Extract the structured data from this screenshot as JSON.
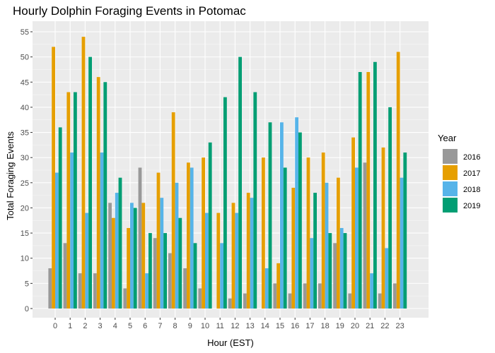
{
  "chart_data": {
    "type": "bar",
    "title": "Hourly Dolphin Foraging Events in Potomac",
    "xlabel": "Hour (EST)",
    "ylabel": "Total Foraging Events",
    "ylim": [
      0,
      55
    ],
    "yticks": [
      0,
      5,
      10,
      15,
      20,
      25,
      30,
      35,
      40,
      45,
      50,
      55
    ],
    "grid": true,
    "legend_title": "Year",
    "legend_position": "right",
    "categories": [
      "0",
      "1",
      "2",
      "3",
      "4",
      "5",
      "6",
      "7",
      "8",
      "9",
      "10",
      "11",
      "12",
      "13",
      "14",
      "15",
      "16",
      "17",
      "18",
      "19",
      "20",
      "21",
      "22",
      "23"
    ],
    "series": [
      {
        "name": "2016",
        "color": "#999999",
        "values": [
          8,
          13,
          7,
          7,
          21,
          4,
          28,
          14,
          11,
          8,
          4,
          null,
          2,
          3,
          null,
          5,
          3,
          5,
          5,
          13,
          3,
          29,
          3,
          5
        ]
      },
      {
        "name": "2017",
        "color": "#E69F00",
        "values": [
          52,
          43,
          54,
          46,
          18,
          16,
          21,
          27,
          39,
          29,
          30,
          19,
          21,
          23,
          30,
          9,
          24,
          30,
          31,
          26,
          34,
          47,
          32,
          51
        ]
      },
      {
        "name": "2018",
        "color": "#56B4E9",
        "values": [
          27,
          31,
          19,
          31,
          23,
          21,
          7,
          22,
          25,
          28,
          19,
          13,
          19,
          22,
          8,
          37,
          38,
          14,
          25,
          16,
          28,
          7,
          12,
          26
        ]
      },
      {
        "name": "2019",
        "color": "#009E73",
        "values": [
          36,
          43,
          50,
          45,
          26,
          20,
          15,
          15,
          18,
          13,
          33,
          42,
          50,
          43,
          37,
          28,
          35,
          23,
          15,
          15,
          47,
          49,
          40,
          31
        ]
      }
    ]
  }
}
